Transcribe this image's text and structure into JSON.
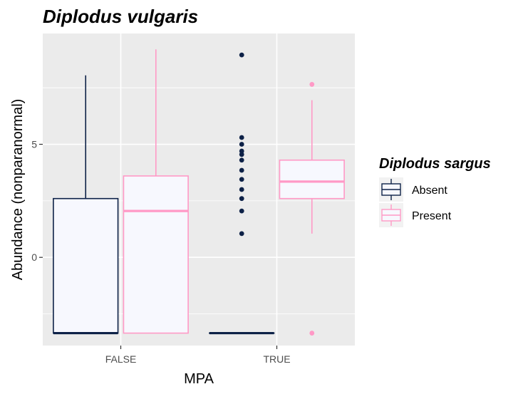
{
  "chart_data": {
    "type": "boxplot",
    "title": "Diplodus vulgaris",
    "xlabel": "MPA",
    "ylabel": "Abundance (nonparanormal)",
    "categories": [
      "FALSE",
      "TRUE"
    ],
    "ylim": [
      -3.9,
      9.9
    ],
    "y_ticks": [
      0,
      5
    ],
    "grid": true,
    "legend": {
      "title": "Diplodus sargus",
      "position": "right",
      "entries": [
        "Absent",
        "Present"
      ]
    },
    "series": [
      {
        "name": "Absent",
        "color": "#0d2147",
        "fill": "#f7f8fe",
        "boxes": [
          {
            "category": "FALSE",
            "whisker_low": -3.35,
            "q1": -3.35,
            "median": -3.35,
            "q3": 2.6,
            "whisker_high": 8.05,
            "outliers": []
          },
          {
            "category": "TRUE",
            "whisker_low": -3.35,
            "q1": -3.35,
            "median": -3.35,
            "q3": -3.35,
            "whisker_high": -3.35,
            "outliers": [
              1.05,
              2.05,
              2.6,
              3.0,
              3.45,
              3.85,
              4.3,
              4.55,
              4.7,
              5.0,
              5.3,
              8.95
            ]
          }
        ]
      },
      {
        "name": "Present",
        "color": "#ff99c6",
        "fill": "#f7f8fe",
        "boxes": [
          {
            "category": "FALSE",
            "whisker_low": -3.35,
            "q1": -3.35,
            "median": 2.05,
            "q3": 3.6,
            "whisker_high": 9.2,
            "outliers": []
          },
          {
            "category": "TRUE",
            "whisker_low": 1.05,
            "q1": 2.6,
            "median": 3.35,
            "q3": 4.3,
            "whisker_high": 6.95,
            "outliers": [
              -3.35,
              7.65
            ]
          }
        ]
      }
    ]
  }
}
